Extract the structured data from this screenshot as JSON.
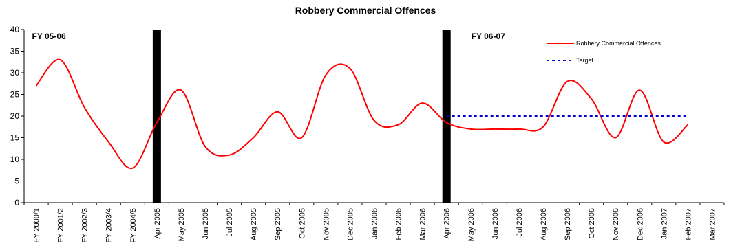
{
  "chart_data": {
    "type": "line",
    "title": "Robbery Commercial Offences",
    "xlabel": "",
    "ylabel": "",
    "ylim": [
      0,
      40
    ],
    "yticks": [
      0,
      5,
      10,
      15,
      20,
      25,
      30,
      35,
      40
    ],
    "grid": false,
    "legend_position": "top-right",
    "categories": [
      "FY 2000/1",
      "FY 2001/2",
      "FY 2002/3",
      "FY 2003/4",
      "FY 2004/5",
      "Apr 2005",
      "May 2005",
      "Jun 2005",
      "Jul 2005",
      "Aug 2005",
      "Sep 2005",
      "Oct 2005",
      "Nov 2005",
      "Dec 2005",
      "Jan 2006",
      "Feb 2006",
      "Mar 2006",
      "Apr 2006",
      "May 2006",
      "Jun 2006",
      "Jul 2006",
      "Aug 2006",
      "Sep 2006",
      "Oct 2006",
      "Nov 2006",
      "Dec 2006",
      "Jan 2007",
      "Feb 2007",
      "Mar 2007"
    ],
    "series": [
      {
        "name": "Robbery Commercial Offences",
        "color": "#ff0000",
        "style": "solid",
        "values": [
          27,
          33,
          22,
          14,
          8,
          18.5,
          26,
          13,
          11,
          15,
          21,
          15,
          29.5,
          31,
          19,
          18,
          23,
          18.5,
          17,
          17,
          17,
          17.5,
          28,
          24,
          15,
          26,
          14,
          18,
          null
        ]
      },
      {
        "name": "Target",
        "color": "#0000cc",
        "style": "dotted",
        "values": [
          null,
          null,
          null,
          null,
          null,
          null,
          null,
          null,
          null,
          null,
          null,
          null,
          null,
          null,
          null,
          null,
          null,
          20,
          20,
          20,
          20,
          20,
          20,
          20,
          20,
          20,
          20,
          20,
          null
        ]
      }
    ],
    "annotations": [
      {
        "text": "FY 05-06",
        "category": "FY 2000/1"
      },
      {
        "text": "FY 06-07",
        "category": "Apr 2006"
      }
    ],
    "separators": [
      "Apr 2005",
      "Apr 2006"
    ]
  }
}
